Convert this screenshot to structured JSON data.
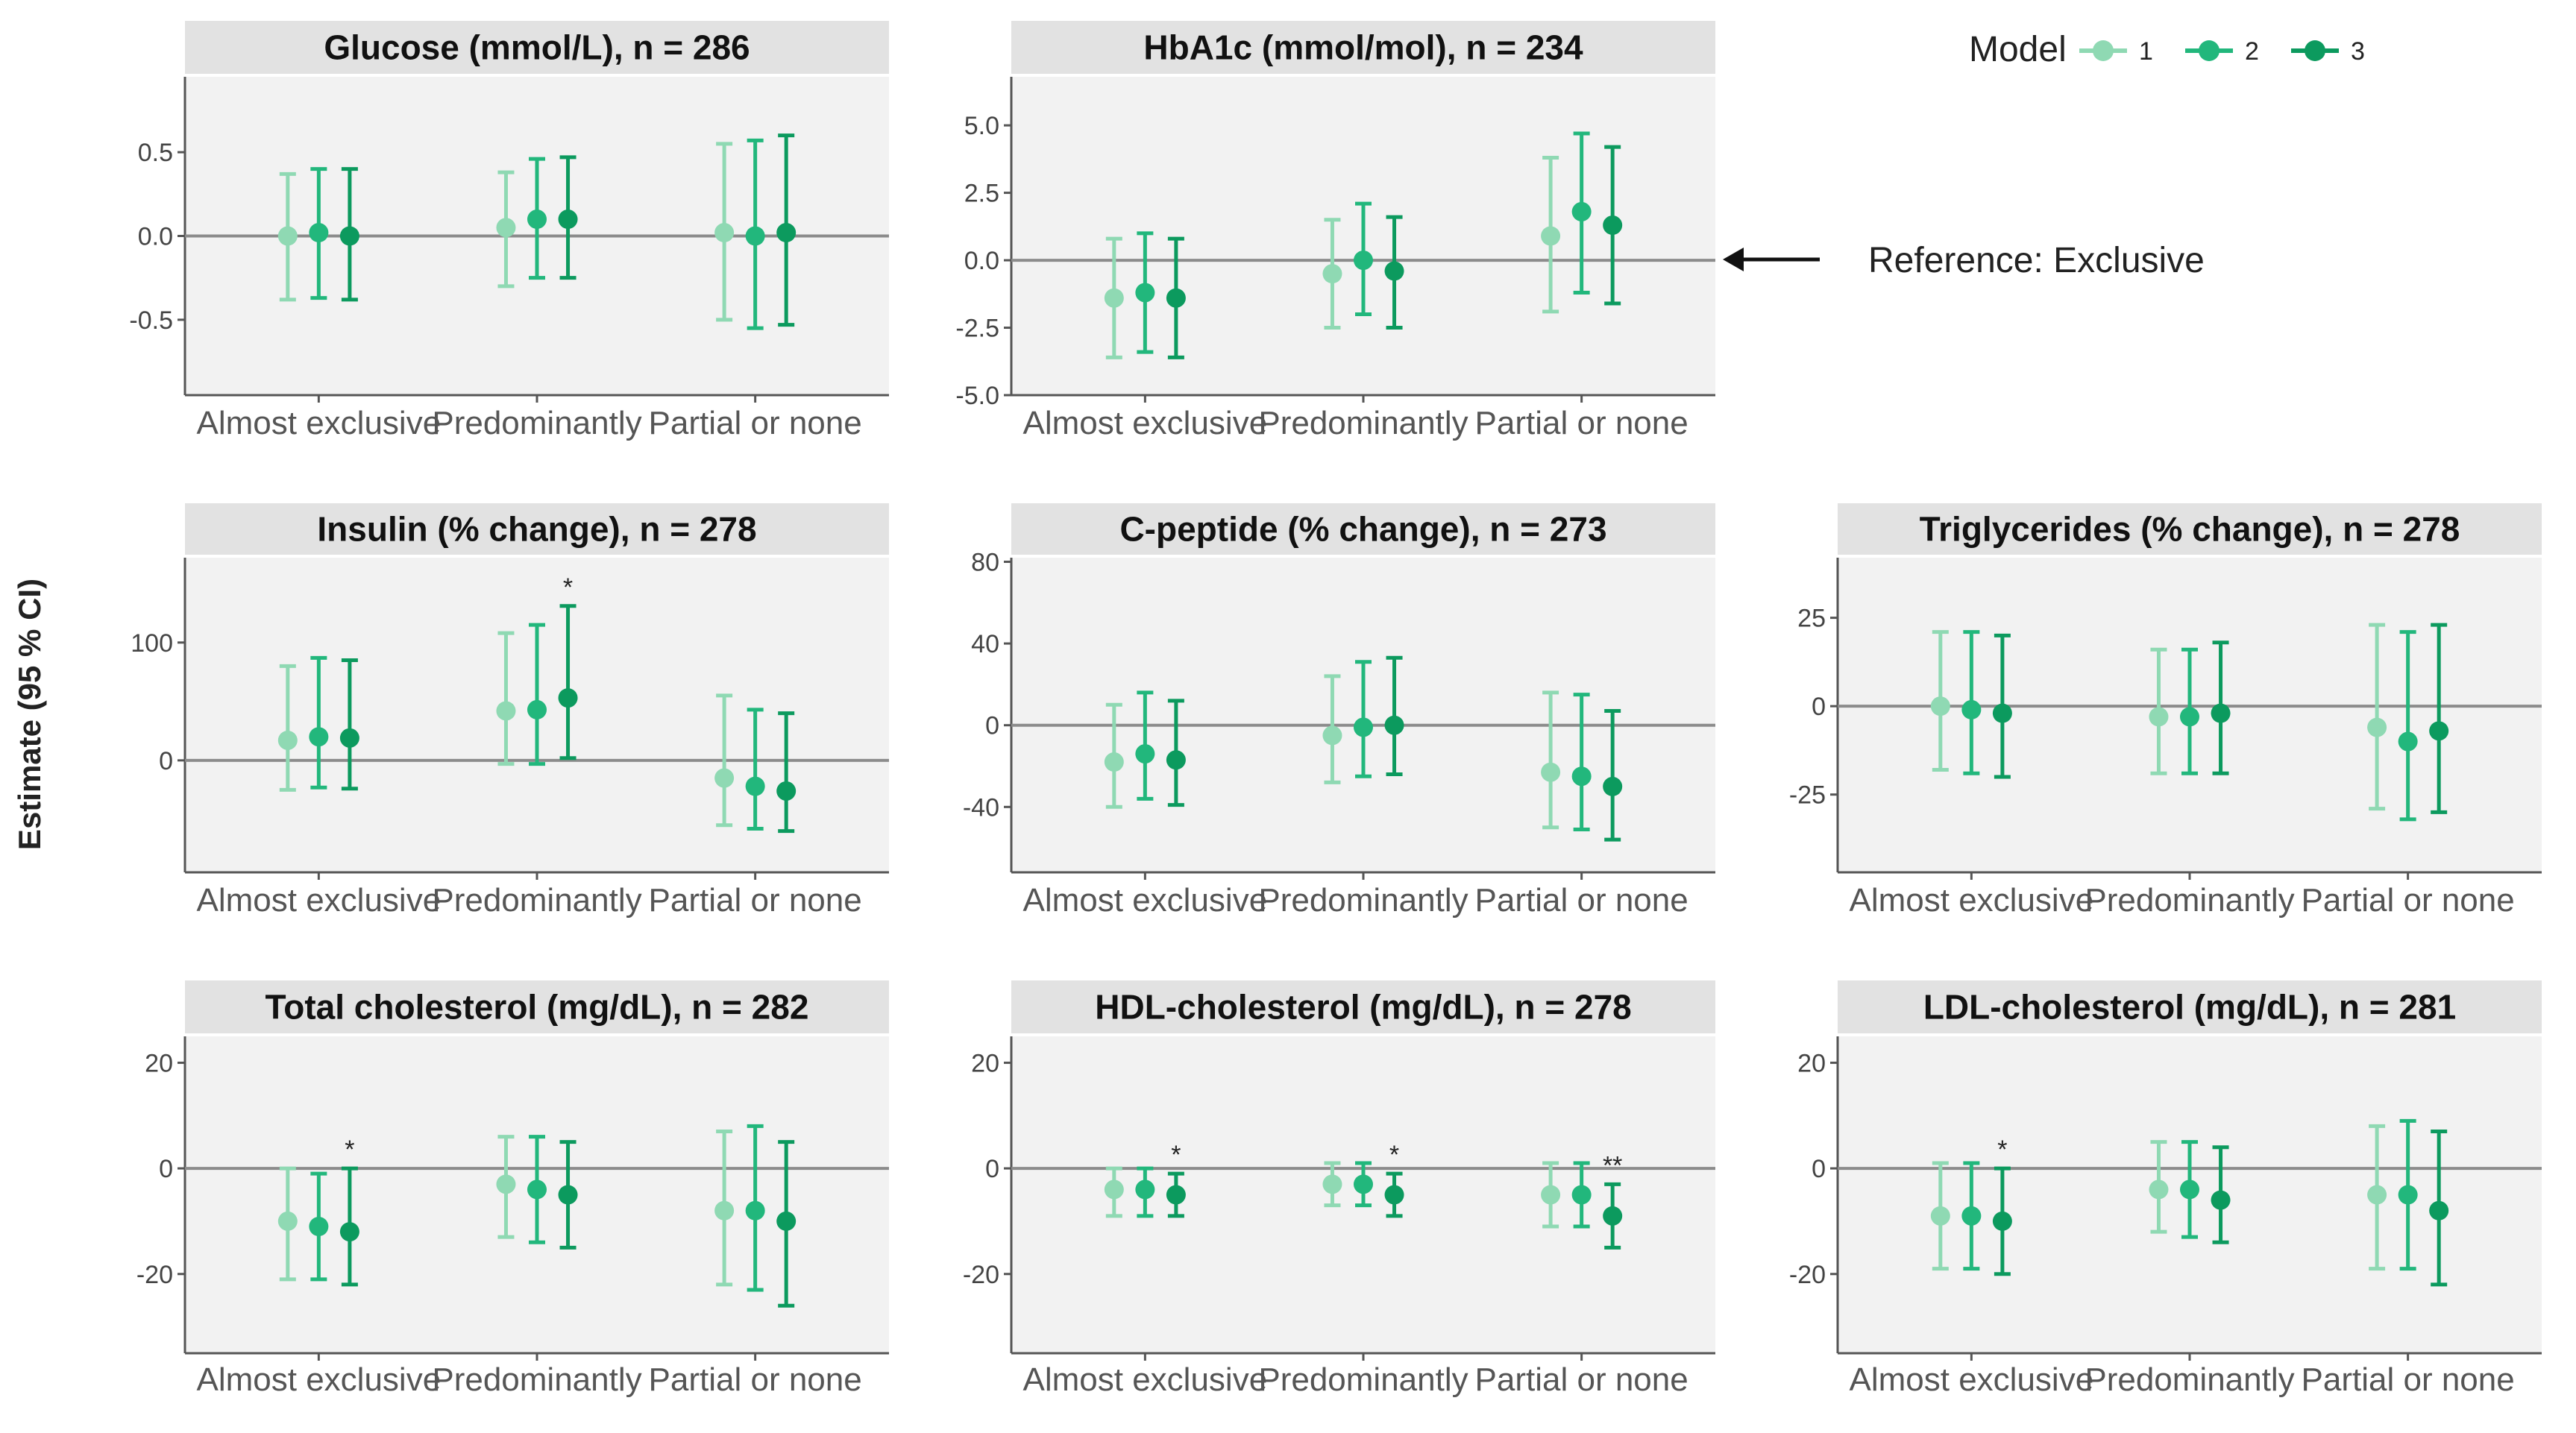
{
  "figure": {
    "y_axis_label": "Estimate (95 % CI)",
    "legend": {
      "title": "Model",
      "entries": [
        "1",
        "2",
        "3"
      ]
    },
    "reference_note": "Reference:  Exclusive",
    "colors": {
      "model1": "#8fd9b3",
      "model2": "#22b77c",
      "model3": "#0c9a5e",
      "panel_bg": "#f2f2f2",
      "strip_bg": "#e2e2e2",
      "zero_line": "#8c8c8c",
      "axis": "#555555"
    }
  },
  "chart_data": [
    {
      "type": "errorbar",
      "title": "Glucose (mmol/L), n = 286",
      "categories": [
        "Almost exclusive",
        "Predominantly",
        "Partial or none"
      ],
      "yticks": [
        "0.5",
        "0.0",
        "-0.5"
      ],
      "ytick_values": [
        0.5,
        0.0,
        -0.5
      ],
      "ylim": [
        -0.95,
        0.95
      ],
      "series": [
        {
          "name": "1",
          "est": [
            0.0,
            0.05,
            0.02
          ],
          "lo": [
            -0.38,
            -0.3,
            -0.5
          ],
          "hi": [
            0.37,
            0.38,
            0.55
          ]
        },
        {
          "name": "2",
          "est": [
            0.02,
            0.1,
            0.0
          ],
          "lo": [
            -0.37,
            -0.25,
            -0.55
          ],
          "hi": [
            0.4,
            0.46,
            0.57
          ]
        },
        {
          "name": "3",
          "est": [
            0.0,
            0.1,
            0.02
          ],
          "lo": [
            -0.38,
            -0.25,
            -0.53
          ],
          "hi": [
            0.4,
            0.47,
            0.6
          ]
        }
      ],
      "sig": [
        "",
        "",
        ""
      ]
    },
    {
      "type": "errorbar",
      "title": "HbA1c (mmol/mol), n = 234",
      "categories": [
        "Almost exclusive",
        "Predominantly",
        "Partial or none"
      ],
      "yticks": [
        "5.0",
        "2.5",
        "0.0",
        "-2.5",
        "-5.0"
      ],
      "ytick_values": [
        5.0,
        2.5,
        0.0,
        -2.5,
        -5.0
      ],
      "ylim": [
        -5.0,
        6.8
      ],
      "series": [
        {
          "name": "1",
          "est": [
            -1.4,
            -0.5,
            0.9
          ],
          "lo": [
            -3.6,
            -2.5,
            -1.9
          ],
          "hi": [
            0.8,
            1.5,
            3.8
          ]
        },
        {
          "name": "2",
          "est": [
            -1.2,
            0.0,
            1.8
          ],
          "lo": [
            -3.4,
            -2.0,
            -1.2
          ],
          "hi": [
            1.0,
            2.1,
            4.7
          ]
        },
        {
          "name": "3",
          "est": [
            -1.4,
            -0.4,
            1.3
          ],
          "lo": [
            -3.6,
            -2.5,
            -1.6
          ],
          "hi": [
            0.8,
            1.6,
            4.2
          ]
        }
      ],
      "sig": [
        "",
        "",
        ""
      ]
    },
    {
      "type": "errorbar",
      "title": "Insulin (% change), n = 278",
      "categories": [
        "Almost exclusive",
        "Predominantly",
        "Partial or none"
      ],
      "yticks": [
        "100",
        "0"
      ],
      "ytick_values": [
        100,
        0
      ],
      "ylim": [
        -95,
        172
      ],
      "series": [
        {
          "name": "1",
          "est": [
            17,
            42,
            -15
          ],
          "lo": [
            -25,
            -3,
            -55
          ],
          "hi": [
            80,
            108,
            55
          ]
        },
        {
          "name": "2",
          "est": [
            20,
            43,
            -22
          ],
          "lo": [
            -23,
            -3,
            -58
          ],
          "hi": [
            87,
            115,
            43
          ]
        },
        {
          "name": "3",
          "est": [
            19,
            53,
            -26
          ],
          "lo": [
            -24,
            2,
            -60
          ],
          "hi": [
            85,
            131,
            40
          ]
        }
      ],
      "sig": [
        "",
        "*",
        ""
      ]
    },
    {
      "type": "errorbar",
      "title": "C-peptide (% change), n = 273",
      "categories": [
        "Almost exclusive",
        "Predominantly",
        "Partial or none"
      ],
      "yticks": [
        "80",
        "40",
        "0",
        "-40"
      ],
      "ytick_values": [
        80,
        40,
        0,
        -40
      ],
      "ylim": [
        -72,
        82
      ],
      "series": [
        {
          "name": "1",
          "est": [
            -18,
            -5,
            -23
          ],
          "lo": [
            -40,
            -28,
            -50
          ],
          "hi": [
            10,
            24,
            16
          ]
        },
        {
          "name": "2",
          "est": [
            -14,
            -1,
            -25
          ],
          "lo": [
            -36,
            -25,
            -51
          ],
          "hi": [
            16,
            31,
            15
          ]
        },
        {
          "name": "3",
          "est": [
            -17,
            0,
            -30
          ],
          "lo": [
            -39,
            -24,
            -56
          ],
          "hi": [
            12,
            33,
            7
          ]
        }
      ],
      "sig": [
        "",
        "",
        ""
      ]
    },
    {
      "type": "errorbar",
      "title": "Triglycerides (% change), n = 278",
      "categories": [
        "Almost exclusive",
        "Predominantly",
        "Partial or none"
      ],
      "yticks": [
        "25",
        "0",
        "-25"
      ],
      "ytick_values": [
        25,
        0,
        -25
      ],
      "ylim": [
        -47,
        42
      ],
      "series": [
        {
          "name": "1",
          "est": [
            0,
            -3,
            -6
          ],
          "lo": [
            -18,
            -19,
            -29
          ],
          "hi": [
            21,
            16,
            23
          ]
        },
        {
          "name": "2",
          "est": [
            -1,
            -3,
            -10
          ],
          "lo": [
            -19,
            -19,
            -32
          ],
          "hi": [
            21,
            16,
            21
          ]
        },
        {
          "name": "3",
          "est": [
            -2,
            -2,
            -7
          ],
          "lo": [
            -20,
            -19,
            -30
          ],
          "hi": [
            20,
            18,
            23
          ]
        }
      ],
      "sig": [
        "",
        "",
        ""
      ]
    },
    {
      "type": "errorbar",
      "title": "Total cholesterol (mg/dL), n = 282",
      "categories": [
        "Almost exclusive",
        "Predominantly",
        "Partial or none"
      ],
      "yticks": [
        "20",
        "0",
        "-20"
      ],
      "ytick_values": [
        20,
        0,
        -20
      ],
      "ylim": [
        -35,
        25
      ],
      "series": [
        {
          "name": "1",
          "est": [
            -10,
            -3,
            -8
          ],
          "lo": [
            -21,
            -13,
            -22
          ],
          "hi": [
            0,
            6,
            7
          ]
        },
        {
          "name": "2",
          "est": [
            -11,
            -4,
            -8
          ],
          "lo": [
            -21,
            -14,
            -23
          ],
          "hi": [
            -1,
            6,
            8
          ]
        },
        {
          "name": "3",
          "est": [
            -12,
            -5,
            -10
          ],
          "lo": [
            -22,
            -15,
            -26
          ],
          "hi": [
            0,
            5,
            5
          ]
        }
      ],
      "sig": [
        "*",
        "",
        ""
      ]
    },
    {
      "type": "errorbar",
      "title": "HDL-cholesterol (mg/dL), n = 278",
      "categories": [
        "Almost exclusive",
        "Predominantly",
        "Partial or none"
      ],
      "yticks": [
        "20",
        "0",
        "-20"
      ],
      "ytick_values": [
        20,
        0,
        -20
      ],
      "ylim": [
        -35,
        25
      ],
      "series": [
        {
          "name": "1",
          "est": [
            -4,
            -3,
            -5
          ],
          "lo": [
            -9,
            -7,
            -11
          ],
          "hi": [
            0,
            1,
            1
          ]
        },
        {
          "name": "2",
          "est": [
            -4,
            -3,
            -5
          ],
          "lo": [
            -9,
            -7,
            -11
          ],
          "hi": [
            0,
            1,
            1
          ]
        },
        {
          "name": "3",
          "est": [
            -5,
            -5,
            -9
          ],
          "lo": [
            -9,
            -9,
            -15
          ],
          "hi": [
            -1,
            -1,
            -3
          ]
        }
      ],
      "sig": [
        "*",
        "*",
        "**"
      ]
    },
    {
      "type": "errorbar",
      "title": "LDL-cholesterol (mg/dL), n = 281",
      "categories": [
        "Almost exclusive",
        "Predominantly",
        "Partial or none"
      ],
      "yticks": [
        "20",
        "0",
        "-20"
      ],
      "ytick_values": [
        20,
        0,
        -20
      ],
      "ylim": [
        -35,
        25
      ],
      "series": [
        {
          "name": "1",
          "est": [
            -9,
            -4,
            -5
          ],
          "lo": [
            -19,
            -12,
            -19
          ],
          "hi": [
            1,
            5,
            8
          ]
        },
        {
          "name": "2",
          "est": [
            -9,
            -4,
            -5
          ],
          "lo": [
            -19,
            -13,
            -19
          ],
          "hi": [
            1,
            5,
            9
          ]
        },
        {
          "name": "3",
          "est": [
            -10,
            -6,
            -8
          ],
          "lo": [
            -20,
            -14,
            -22
          ],
          "hi": [
            0,
            4,
            7
          ]
        }
      ],
      "sig": [
        "*",
        "",
        ""
      ]
    }
  ]
}
